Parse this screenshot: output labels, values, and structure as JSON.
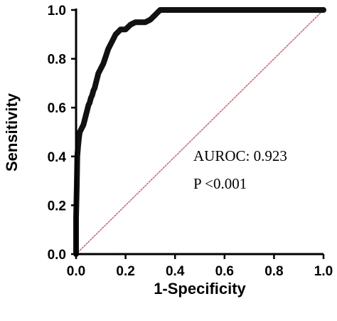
{
  "chart_data": {
    "type": "line",
    "xlabel": "1-Specificity",
    "ylabel": "Sensitivity",
    "xlim": [
      0,
      1
    ],
    "ylim": [
      0,
      1
    ],
    "x_ticks": [
      "0.0",
      "0.2",
      "0.4",
      "0.6",
      "0.8",
      "1.0"
    ],
    "y_ticks": [
      "0.0",
      "0.2",
      "0.4",
      "0.6",
      "0.8",
      "1.0"
    ],
    "grid": false,
    "annotations": [
      "AUROC: 0.923",
      "P <0.001"
    ],
    "series": [
      {
        "role": "roc-curve",
        "color": "#111111",
        "x": [
          0,
          0,
          0.003,
          0.005,
          0.008,
          0.01,
          0.012,
          0.015,
          0.02,
          0.025,
          0.03,
          0.035,
          0.04,
          0.045,
          0.05,
          0.055,
          0.06,
          0.065,
          0.07,
          0.075,
          0.08,
          0.085,
          0.09,
          0.1,
          0.11,
          0.12,
          0.13,
          0.14,
          0.15,
          0.155,
          0.16,
          0.17,
          0.18,
          0.19,
          0.2,
          0.22,
          0.24,
          0.26,
          0.28,
          0.3,
          0.31,
          0.32,
          0.33,
          0.34,
          0.5,
          1.0
        ],
        "y": [
          0,
          0.15,
          0.28,
          0.4,
          0.44,
          0.46,
          0.48,
          0.5,
          0.51,
          0.52,
          0.53,
          0.55,
          0.57,
          0.59,
          0.61,
          0.62,
          0.64,
          0.65,
          0.67,
          0.68,
          0.7,
          0.72,
          0.74,
          0.76,
          0.78,
          0.81,
          0.84,
          0.86,
          0.88,
          0.89,
          0.9,
          0.91,
          0.92,
          0.92,
          0.92,
          0.94,
          0.95,
          0.95,
          0.95,
          0.96,
          0.97,
          0.98,
          0.99,
          1.0,
          1.0,
          1.0
        ]
      },
      {
        "role": "reference-diagonal",
        "color": "#e0425a",
        "x": [
          0,
          1
        ],
        "y": [
          0,
          1
        ]
      }
    ]
  }
}
